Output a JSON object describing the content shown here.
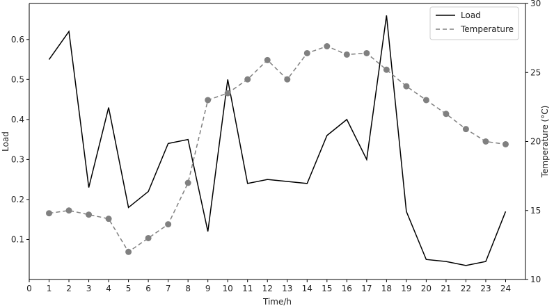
{
  "chart_data": {
    "type": "line",
    "x": [
      1,
      2,
      3,
      4,
      5,
      6,
      7,
      8,
      9,
      10,
      11,
      12,
      13,
      14,
      15,
      16,
      17,
      18,
      19,
      20,
      21,
      22,
      23,
      24
    ],
    "x_ticks": [
      "0",
      "1",
      "2",
      "3",
      "4",
      "5",
      "6",
      "7",
      "8",
      "9",
      "10",
      "11",
      "12",
      "13",
      "14",
      "15",
      "16",
      "17",
      "18",
      "19",
      "20",
      "21",
      "22",
      "23",
      "24"
    ],
    "xlabel": "Time/h",
    "xlim": [
      0,
      25
    ],
    "series": [
      {
        "name": "Load",
        "axis": "left",
        "color": "#000000",
        "style": "solid",
        "values": [
          0.55,
          0.62,
          0.23,
          0.43,
          0.18,
          0.22,
          0.34,
          0.35,
          0.12,
          0.5,
          0.24,
          0.25,
          0.245,
          0.24,
          0.36,
          0.4,
          0.3,
          0.66,
          0.17,
          0.05,
          0.045,
          0.035,
          0.045,
          0.17
        ]
      },
      {
        "name": "Temperature",
        "axis": "right",
        "color": "#808080",
        "style": "dashed",
        "markers": true,
        "values": [
          14.8,
          15.0,
          14.7,
          14.4,
          12.0,
          13.0,
          14.0,
          17.0,
          23.0,
          23.5,
          24.5,
          25.9,
          24.5,
          26.4,
          26.9,
          26.3,
          26.4,
          25.2,
          24.0,
          23.0,
          22.0,
          20.9,
          20.0,
          19.8
        ]
      }
    ],
    "y_left": {
      "label": "Load",
      "ticks": [
        "0.1",
        "0.2",
        "0.3",
        "0.4",
        "0.5",
        "0.6"
      ],
      "range": [
        0.0,
        0.69
      ]
    },
    "y_right": {
      "label": "Temperature (°C)",
      "ticks": [
        "10",
        "15",
        "20",
        "25",
        "30"
      ],
      "range": [
        10,
        30
      ]
    },
    "legend": {
      "position": "top-right",
      "entries": [
        "Load",
        "Temperature"
      ]
    },
    "grid": false
  }
}
